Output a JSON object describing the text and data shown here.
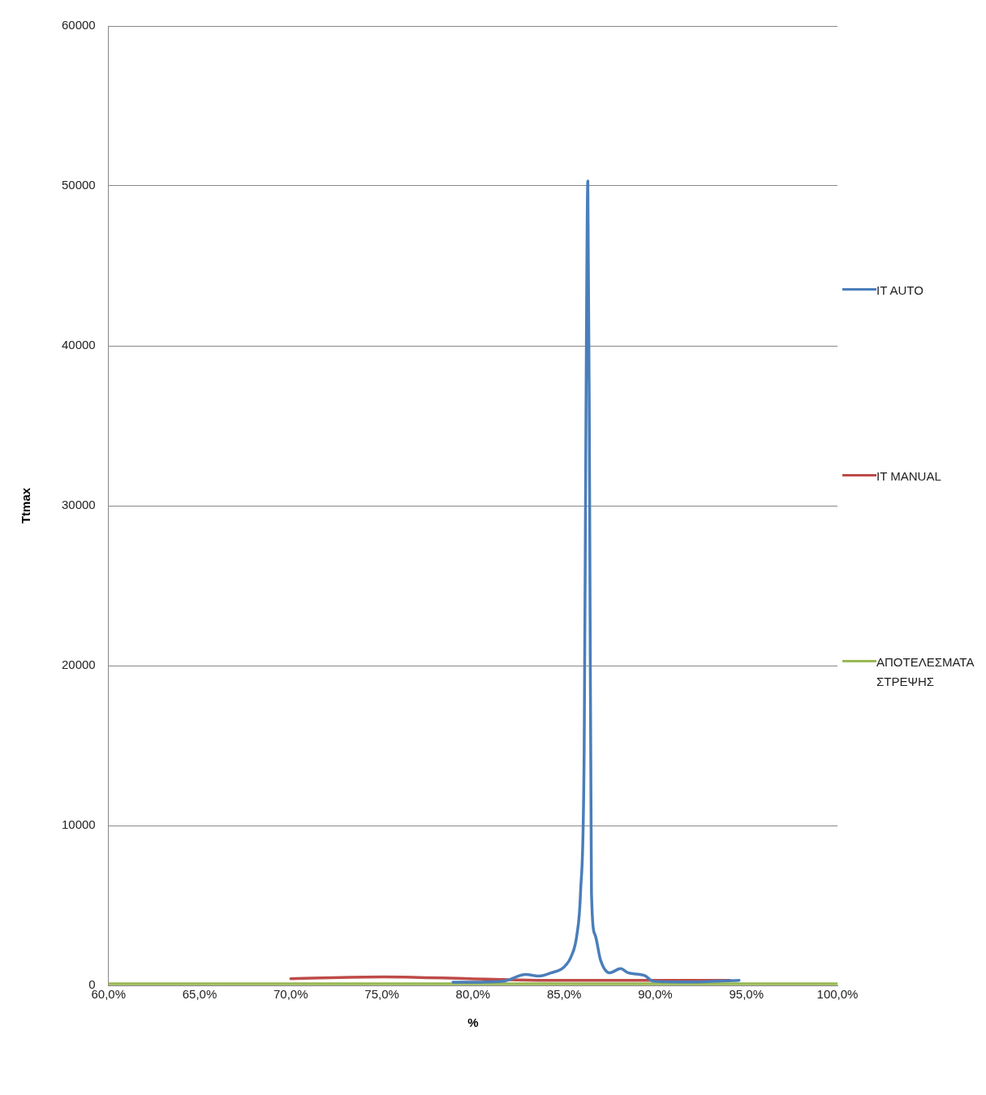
{
  "chart_data": {
    "type": "line",
    "xlabel": "%",
    "ylabel": "Ttmax",
    "xlim": [
      60,
      100
    ],
    "xticks": [
      {
        "value": 60,
        "label": "60,0%"
      },
      {
        "value": 65,
        "label": "65,0%"
      },
      {
        "value": 70,
        "label": "70,0%"
      },
      {
        "value": 75,
        "label": "75,0%"
      },
      {
        "value": 80,
        "label": "80,0%"
      },
      {
        "value": 85,
        "label": "85,0%"
      },
      {
        "value": 90,
        "label": "90,0%"
      },
      {
        "value": 95,
        "label": "95,0%"
      },
      {
        "value": 100,
        "label": "100,0%"
      }
    ],
    "ylim": [
      0,
      60000
    ],
    "yticks": [
      0,
      10000,
      20000,
      30000,
      40000,
      50000,
      60000
    ],
    "grid": "y",
    "legend": "right",
    "marker": "none",
    "line_style": "solid",
    "series": [
      {
        "name": "IT AUTO",
        "color": "#4a7ebb",
        "x": [
          78.9,
          81.6,
          82.9,
          83.6,
          84.3,
          85.0,
          85.4,
          85.7,
          85.9,
          86.1,
          86.2,
          86.3,
          86.4,
          86.5,
          86.7,
          87.0,
          87.5,
          88.1,
          88.5,
          89.4,
          89.9,
          91.9,
          94.6
        ],
        "values": [
          200,
          260,
          680,
          580,
          790,
          1160,
          1840,
          3160,
          5800,
          14700,
          35800,
          50300,
          30500,
          5800,
          3160,
          1580,
          790,
          1050,
          790,
          630,
          260,
          210,
          320
        ]
      },
      {
        "name": "IT MANUAL",
        "color": "#be4b48",
        "x": [
          70,
          75.1,
          79.8,
          83.8,
          94.1
        ],
        "values": [
          420,
          530,
          420,
          320,
          320
        ]
      },
      {
        "name": "ΑΠΟΤΕΛΕΣΜΑΤΑ ΣΤΡΕΨΗΣ",
        "color": "#98b954",
        "x": [
          60,
          100
        ],
        "values": [
          100,
          100
        ]
      }
    ]
  }
}
